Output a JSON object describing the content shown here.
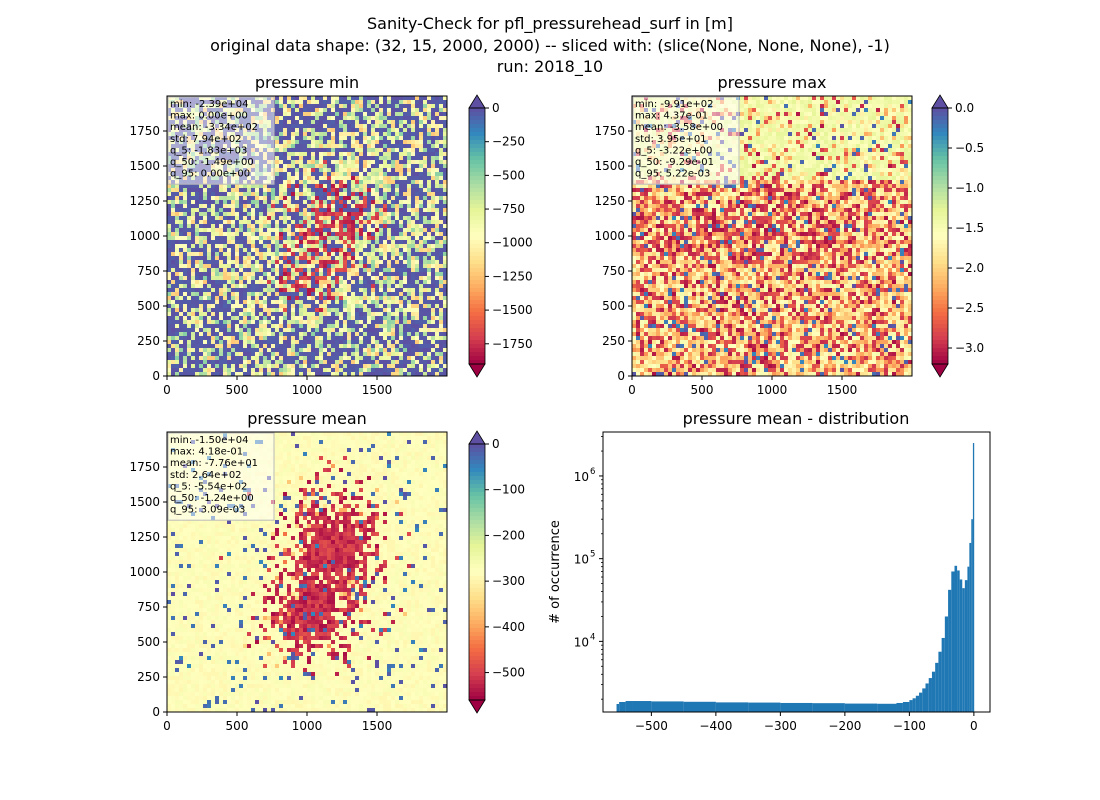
{
  "figure": {
    "suptitle": [
      "Sanity-Check for pfl_pressurehead_surf in [m]",
      "original data shape: (32, 15, 2000, 2000) -- sliced with: (slice(None, None, None), -1)",
      "run: 2018_10"
    ]
  },
  "chart_data": [
    {
      "type": "heatmap",
      "title": "pressure min",
      "xlim": [
        0,
        2000
      ],
      "ylim": [
        0,
        2000
      ],
      "xticks": [
        0,
        500,
        1000,
        1500
      ],
      "yticks": [
        0,
        250,
        500,
        750,
        1000,
        1250,
        1500,
        1750
      ],
      "colorbar": {
        "cmap": "Spectral",
        "vmin": -1900,
        "vmax": 0,
        "extend": "both",
        "ticks": [
          0,
          -250,
          -500,
          -750,
          -1000,
          -1250,
          -1500,
          -1750
        ]
      },
      "stats": [
        "min: -2.39e+04",
        "max: 0.00e+00",
        "mean: -3.34e+02",
        "std: 7.94e+02",
        "q_5: -1.83e+03",
        "q_50: -1.49e+00",
        "q_95: 0.00e+00"
      ]
    },
    {
      "type": "heatmap",
      "title": "pressure max",
      "xlim": [
        0,
        2000
      ],
      "ylim": [
        0,
        2000
      ],
      "xticks": [
        0,
        500,
        1000,
        1500
      ],
      "yticks": [
        0,
        250,
        500,
        750,
        1000,
        1250,
        1500,
        1750
      ],
      "colorbar": {
        "cmap": "Spectral",
        "vmin": -3.2,
        "vmax": 0.0,
        "extend": "both",
        "ticks": [
          0.0,
          -0.5,
          -1.0,
          -1.5,
          -2.0,
          -2.5,
          -3.0
        ],
        "tick_format": 1
      },
      "stats": [
        "min: -9.91e+02",
        "max: 4.37e-01",
        "mean: -3.58e+00",
        "std: 3.95e+01",
        "q_5: -3.22e+00",
        "q_50: -9.29e-01",
        "q_95: 5.22e-03"
      ]
    },
    {
      "type": "heatmap",
      "title": "pressure mean",
      "xlim": [
        0,
        2000
      ],
      "ylim": [
        0,
        2000
      ],
      "xticks": [
        0,
        500,
        1000,
        1500
      ],
      "yticks": [
        0,
        250,
        500,
        750,
        1000,
        1250,
        1500,
        1750
      ],
      "colorbar": {
        "cmap": "Spectral",
        "vmin": -560,
        "vmax": 0,
        "extend": "both",
        "ticks": [
          0,
          -100,
          -200,
          -300,
          -400,
          -500
        ]
      },
      "stats": [
        "min: -1.50e+04",
        "max: 4.18e-01",
        "mean: -7.76e+01",
        "std: 2.64e+02",
        "q_5: -5.54e+02",
        "q_50: -1.24e+00",
        "q_95: 3.09e-03"
      ]
    },
    {
      "type": "bar",
      "title": "pressure mean - distribution",
      "ylabel": "# of occurrence",
      "xlabel": "",
      "yscale": "log",
      "xlim": [
        -575,
        25
      ],
      "ylim": [
        1400,
        3400000
      ],
      "xticks": [
        -500,
        -400,
        -300,
        -200,
        -100,
        0
      ],
      "xtick_labels": [
        "−500",
        "−400",
        "−300",
        "−200",
        "−100",
        "0"
      ],
      "yticks": [
        10000,
        100000,
        1000000
      ],
      "ytick_labels": [
        "10",
        "10",
        "10"
      ],
      "ytick_exponents": [
        "4",
        "5",
        "6"
      ],
      "bar_color": "#1f77b4",
      "bins": [
        {
          "x0": -554,
          "x1": -550,
          "y": 1750
        },
        {
          "x0": -550,
          "x1": -540,
          "y": 1850
        },
        {
          "x0": -540,
          "x1": -530,
          "y": 1900
        },
        {
          "x0": -530,
          "x1": -500,
          "y": 1900
        },
        {
          "x0": -500,
          "x1": -450,
          "y": 1880
        },
        {
          "x0": -450,
          "x1": -400,
          "y": 1860
        },
        {
          "x0": -400,
          "x1": -350,
          "y": 1830
        },
        {
          "x0": -350,
          "x1": -300,
          "y": 1820
        },
        {
          "x0": -300,
          "x1": -250,
          "y": 1800
        },
        {
          "x0": -250,
          "x1": -200,
          "y": 1790
        },
        {
          "x0": -200,
          "x1": -150,
          "y": 1770
        },
        {
          "x0": -150,
          "x1": -120,
          "y": 1760
        },
        {
          "x0": -120,
          "x1": -110,
          "y": 1800
        },
        {
          "x0": -110,
          "x1": -100,
          "y": 1850
        },
        {
          "x0": -100,
          "x1": -95,
          "y": 1950
        },
        {
          "x0": -95,
          "x1": -90,
          "y": 2050
        },
        {
          "x0": -90,
          "x1": -85,
          "y": 2200
        },
        {
          "x0": -85,
          "x1": -80,
          "y": 2400
        },
        {
          "x0": -80,
          "x1": -75,
          "y": 2700
        },
        {
          "x0": -75,
          "x1": -70,
          "y": 3100
        },
        {
          "x0": -70,
          "x1": -65,
          "y": 3600
        },
        {
          "x0": -65,
          "x1": -60,
          "y": 4300
        },
        {
          "x0": -60,
          "x1": -55,
          "y": 5500
        },
        {
          "x0": -55,
          "x1": -50,
          "y": 7500
        },
        {
          "x0": -50,
          "x1": -45,
          "y": 11000
        },
        {
          "x0": -45,
          "x1": -40,
          "y": 20000
        },
        {
          "x0": -40,
          "x1": -35,
          "y": 42000
        },
        {
          "x0": -35,
          "x1": -30,
          "y": 70000
        },
        {
          "x0": -30,
          "x1": -26,
          "y": 82000
        },
        {
          "x0": -26,
          "x1": -22,
          "y": 72000
        },
        {
          "x0": -22,
          "x1": -18,
          "y": 56000
        },
        {
          "x0": -18,
          "x1": -14,
          "y": 44000
        },
        {
          "x0": -14,
          "x1": -10,
          "y": 55000
        },
        {
          "x0": -10,
          "x1": -7,
          "y": 80000
        },
        {
          "x0": -7,
          "x1": -4,
          "y": 155000
        },
        {
          "x0": -4,
          "x1": -1.5,
          "y": 300000
        },
        {
          "x0": -1.5,
          "x1": 0.5,
          "y": 2500000
        }
      ]
    }
  ]
}
